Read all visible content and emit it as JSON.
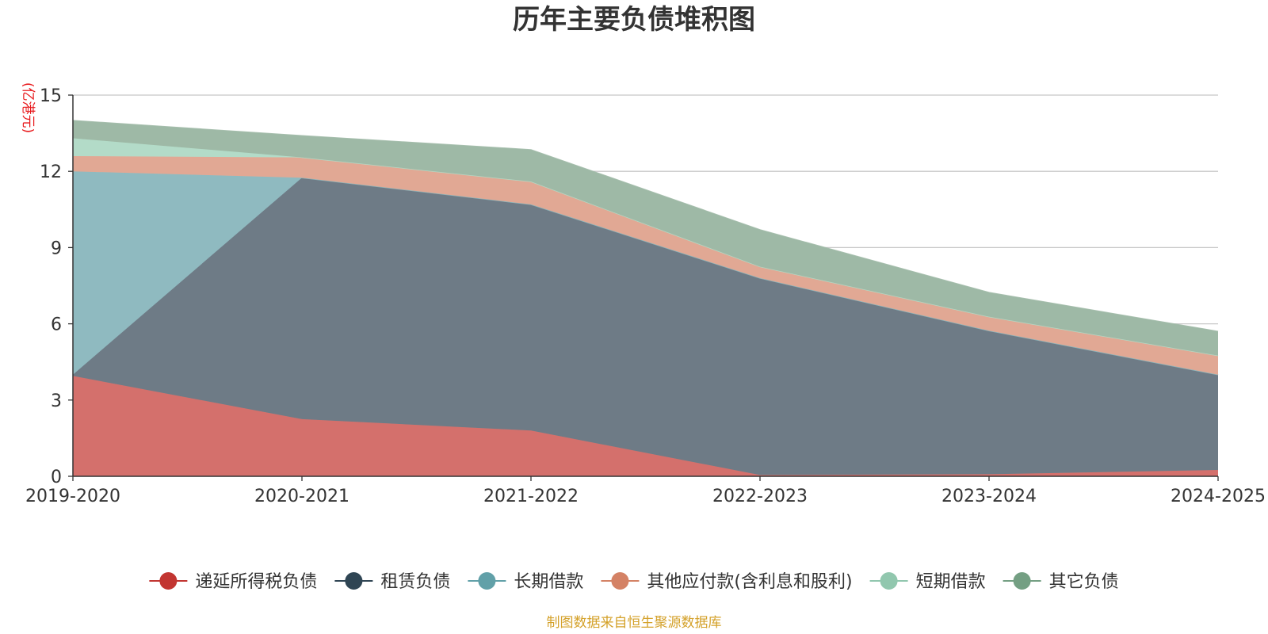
{
  "chart_data": {
    "type": "area",
    "stacked": true,
    "title": "历年主要负债堆积图",
    "ylabel": "(亿港元)",
    "xlabel": "",
    "categories": [
      "2019-2020",
      "2020-2021",
      "2021-2022",
      "2022-2023",
      "2023-2024",
      "2024-2025"
    ],
    "ylim": [
      0,
      15
    ],
    "yticks": [
      0,
      3,
      6,
      9,
      12,
      15
    ],
    "grid": true,
    "legend_position": "bottom",
    "series": [
      {
        "name": "递延所得税负债",
        "color": "#c23531",
        "fill": "#d4706c",
        "values": [
          3.95,
          2.25,
          1.8,
          0.05,
          0.08,
          0.25
        ]
      },
      {
        "name": "租赁负债",
        "color": "#2f4554",
        "fill": "#6e7b86",
        "values": [
          0.05,
          9.5,
          8.9,
          7.75,
          5.65,
          3.75
        ]
      },
      {
        "name": "长期借款",
        "color": "#61a0a8",
        "fill": "#8fbac0",
        "values": [
          8.0,
          0.0,
          0.0,
          0.0,
          0.0,
          0.0
        ]
      },
      {
        "name": "其他应付款(含利息和股利)",
        "color": "#d48265",
        "fill": "#e1a894",
        "values": [
          0.6,
          0.8,
          0.9,
          0.45,
          0.55,
          0.75
        ]
      },
      {
        "name": "短期借款",
        "color": "#91c7ae",
        "fill": "#b3dbc8",
        "values": [
          0.7,
          0.0,
          0.0,
          0.0,
          0.0,
          0.0
        ]
      },
      {
        "name": "其它负债",
        "color": "#749f83",
        "fill": "#9eb9a6",
        "values": [
          0.7,
          0.85,
          1.25,
          1.45,
          0.95,
          0.95
        ]
      }
    ],
    "source": "制图数据来自恒生聚源数据库"
  }
}
